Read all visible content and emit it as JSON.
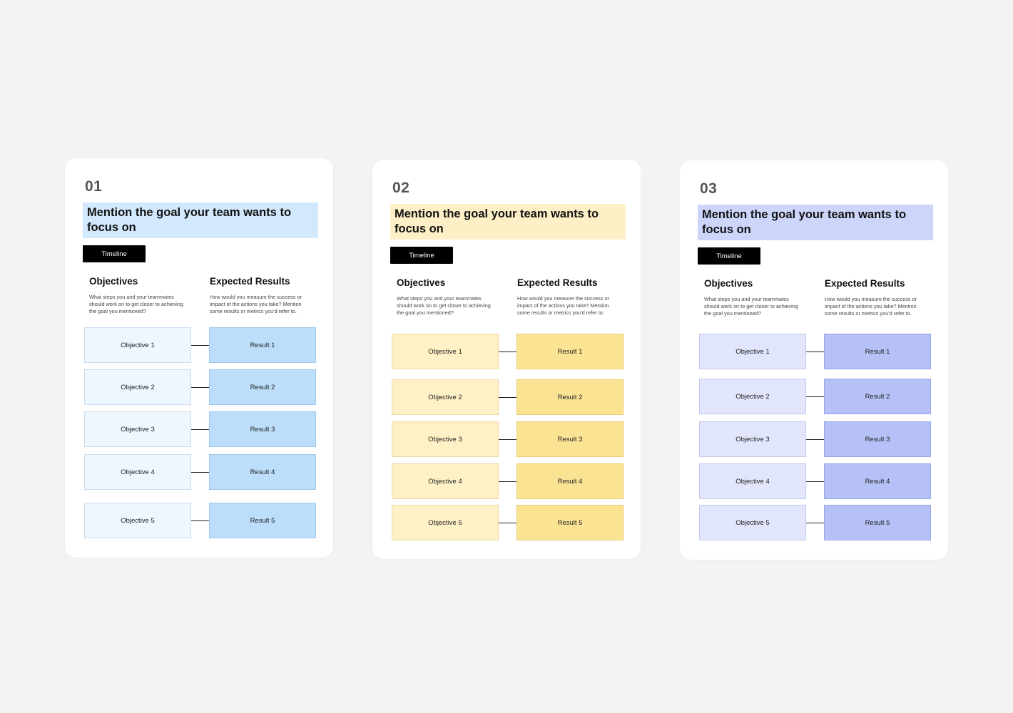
{
  "cards": [
    {
      "number": "01",
      "goal": "Mention the goal your team wants to focus on",
      "timeline_label": "Timeline",
      "objectives_heading": "Objectives",
      "objectives_desc": "What steps you and your teammates should work on to get closer to achieving the goal you mentioned?",
      "results_heading": "Expected Results",
      "results_desc": "How would you measure the success or impact of the actions you take? Mention some results or metrics you'd refer to.",
      "objectives": [
        "Objective 1",
        "Objective 2",
        "Objective 3",
        "Objective 4",
        "Objective 5"
      ],
      "results": [
        "Result 1",
        "Result 2",
        "Result 3",
        "Result 4",
        "Result 5"
      ],
      "colors": {
        "goal_bg": "#d2e8fc",
        "obj_bg": "#eef6fe",
        "obj_border": "#c9dcef",
        "res_bg": "#bcdefa",
        "res_border": "#9cc8ec"
      }
    },
    {
      "number": "02",
      "goal": "Mention the goal your team wants to focus on",
      "timeline_label": "Timeline",
      "objectives_heading": "Objectives",
      "objectives_desc": "What steps you and your teammates should work on to get closer to achieving the goal you mentioned?",
      "results_heading": "Expected Results",
      "results_desc": "How would you measure the success or impact of the actions you take? Mention some results or metrics you'd refer to.",
      "objectives": [
        "Objective 1",
        "Objective 2",
        "Objective 3",
        "Objective 4",
        "Objective 5"
      ],
      "results": [
        "Result 1",
        "Result 2",
        "Result 3",
        "Result 4",
        "Result 5"
      ],
      "colors": {
        "goal_bg": "#fdf0c6",
        "obj_bg": "#fef1c6",
        "obj_border": "#ecd9a2",
        "res_bg": "#fbe394",
        "res_border": "#e8cd71"
      }
    },
    {
      "number": "03",
      "goal": "Mention the goal your team wants to focus on",
      "timeline_label": "Timeline",
      "objectives_heading": "Objectives",
      "objectives_desc": "What steps you and your teammates should work on to get closer to achieving the goal you mentioned?",
      "results_heading": "Expected Results",
      "results_desc": "How would you measure the success or impact of the actions you take? Mention some results or metrics you'd refer to.",
      "objectives": [
        "Objective 1",
        "Objective 2",
        "Objective 3",
        "Objective 4",
        "Objective 5"
      ],
      "results": [
        "Result 1",
        "Result 2",
        "Result 3",
        "Result 4",
        "Result 5"
      ],
      "colors": {
        "goal_bg": "#cdd5fb",
        "obj_bg": "#e2e6fc",
        "obj_border": "#c3c9ec",
        "res_bg": "#b6c2f7",
        "res_border": "#97a4e6"
      }
    }
  ]
}
